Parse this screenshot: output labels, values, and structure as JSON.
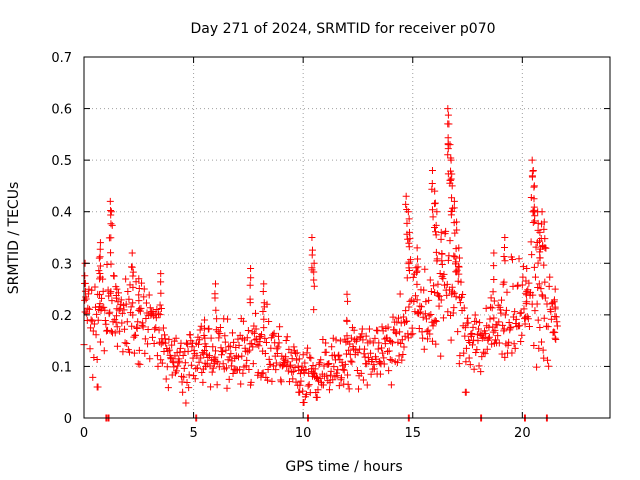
{
  "chart_data": {
    "type": "scatter",
    "title": "Day 271 of 2024, SRMTID for receiver p070",
    "xlabel": "GPS time / hours",
    "ylabel": "SRMTID / TECUs",
    "xlim": [
      0,
      24
    ],
    "ylim": [
      0,
      0.7
    ],
    "x_ticks": [
      0,
      5,
      10,
      15,
      20
    ],
    "x_tick_labels": [
      "0",
      "5",
      "10",
      "15",
      "20"
    ],
    "y_ticks": [
      0,
      0.1,
      0.2,
      0.3,
      0.4,
      0.5,
      0.6,
      0.7
    ],
    "y_tick_labels": [
      "0",
      "0.1",
      "0.2",
      "0.3",
      "0.4",
      "0.5",
      "0.6",
      "0.7"
    ],
    "grid": true,
    "marker": "+",
    "series": [
      {
        "name": "SRMTID",
        "color": "#ff0000",
        "trend": [
          [
            0.0,
            0.22
          ],
          [
            0.5,
            0.19
          ],
          [
            1.0,
            0.2
          ],
          [
            1.5,
            0.21
          ],
          [
            2.0,
            0.2
          ],
          [
            2.5,
            0.19
          ],
          [
            3.0,
            0.18
          ],
          [
            3.5,
            0.15
          ],
          [
            4.0,
            0.13
          ],
          [
            4.5,
            0.11
          ],
          [
            5.0,
            0.12
          ],
          [
            5.5,
            0.12
          ],
          [
            6.0,
            0.12
          ],
          [
            6.5,
            0.12
          ],
          [
            7.0,
            0.12
          ],
          [
            7.5,
            0.14
          ],
          [
            8.0,
            0.14
          ],
          [
            8.5,
            0.13
          ],
          [
            9.0,
            0.12
          ],
          [
            9.5,
            0.1
          ],
          [
            10.0,
            0.09
          ],
          [
            10.5,
            0.08
          ],
          [
            11.0,
            0.1
          ],
          [
            11.5,
            0.11
          ],
          [
            12.0,
            0.12
          ],
          [
            12.5,
            0.13
          ],
          [
            13.0,
            0.13
          ],
          [
            13.5,
            0.13
          ],
          [
            14.0,
            0.14
          ],
          [
            14.5,
            0.18
          ],
          [
            15.0,
            0.22
          ],
          [
            15.5,
            0.2
          ],
          [
            16.0,
            0.22
          ],
          [
            16.5,
            0.26
          ],
          [
            17.0,
            0.23
          ],
          [
            17.5,
            0.17
          ],
          [
            18.0,
            0.15
          ],
          [
            18.5,
            0.16
          ],
          [
            19.0,
            0.18
          ],
          [
            19.5,
            0.21
          ],
          [
            20.0,
            0.22
          ],
          [
            20.5,
            0.24
          ],
          [
            21.0,
            0.21
          ],
          [
            21.5,
            0.18
          ]
        ],
        "peaks": [
          [
            0.05,
            0.3
          ],
          [
            0.7,
            0.31
          ],
          [
            0.75,
            0.34
          ],
          [
            1.2,
            0.42
          ],
          [
            1.25,
            0.4
          ],
          [
            1.5,
            0.25
          ],
          [
            2.2,
            0.32
          ],
          [
            2.5,
            0.27
          ],
          [
            3.5,
            0.28
          ],
          [
            5.5,
            0.19
          ],
          [
            6.0,
            0.26
          ],
          [
            7.6,
            0.29
          ],
          [
            8.2,
            0.26
          ],
          [
            10.4,
            0.35
          ],
          [
            10.5,
            0.3
          ],
          [
            12.0,
            0.24
          ],
          [
            14.7,
            0.43
          ],
          [
            14.8,
            0.4
          ],
          [
            14.85,
            0.36
          ],
          [
            15.2,
            0.33
          ],
          [
            15.9,
            0.48
          ],
          [
            16.0,
            0.44
          ],
          [
            16.1,
            0.4
          ],
          [
            16.3,
            0.36
          ],
          [
            16.6,
            0.6
          ],
          [
            16.65,
            0.57
          ],
          [
            16.7,
            0.53
          ],
          [
            16.75,
            0.5
          ],
          [
            16.8,
            0.45
          ],
          [
            16.9,
            0.42
          ],
          [
            17.0,
            0.38
          ],
          [
            17.1,
            0.33
          ],
          [
            18.7,
            0.32
          ],
          [
            19.2,
            0.35
          ],
          [
            20.2,
            0.29
          ],
          [
            20.45,
            0.5
          ],
          [
            20.5,
            0.48
          ],
          [
            20.55,
            0.45
          ],
          [
            20.7,
            0.4
          ],
          [
            20.8,
            0.36
          ],
          [
            20.9,
            0.4
          ],
          [
            21.0,
            0.38
          ],
          [
            21.5,
            0.25
          ]
        ],
        "lows": [
          [
            1.0,
            0.0
          ],
          [
            1.1,
            0.0
          ],
          [
            5.1,
            0.0
          ],
          [
            10.2,
            0.0
          ],
          [
            14.8,
            0.0
          ],
          [
            18.1,
            0.0
          ],
          [
            20.1,
            0.0
          ],
          [
            21.1,
            0.0
          ],
          [
            0.6,
            0.06
          ],
          [
            10.0,
            0.03
          ],
          [
            10.6,
            0.04
          ],
          [
            17.4,
            0.05
          ],
          [
            9.8,
            0.05
          ]
        ]
      }
    ]
  }
}
